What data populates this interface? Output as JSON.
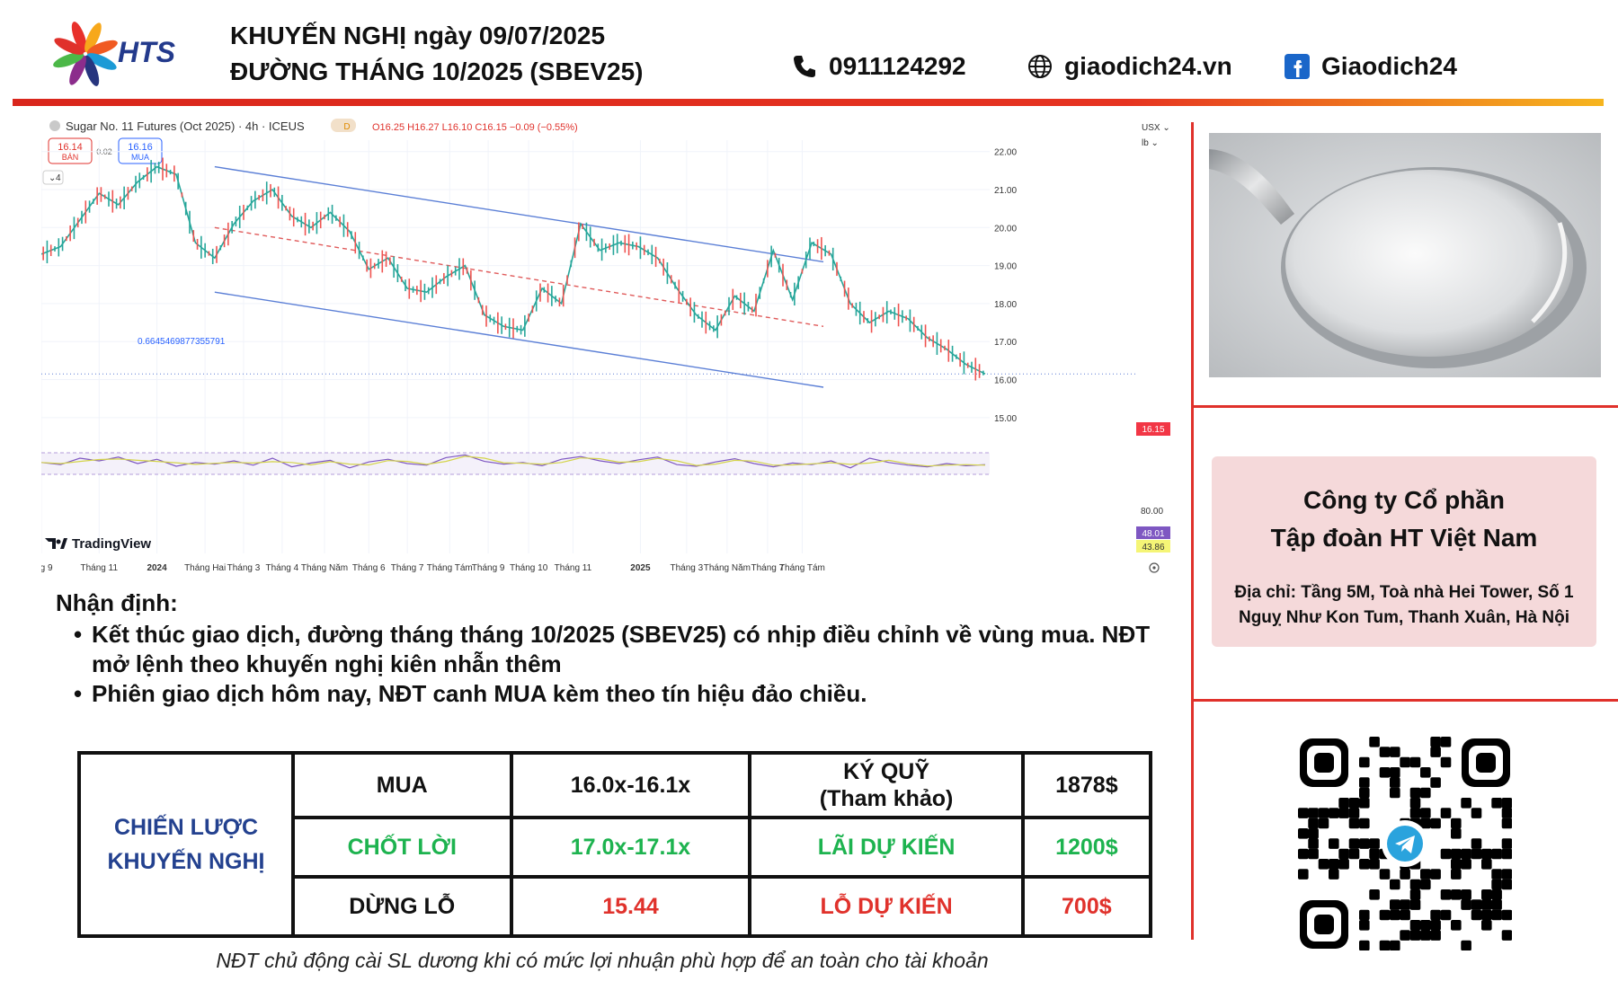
{
  "header": {
    "logo_text": "HTS",
    "title_line1": "KHUYẾN NGHỊ ngày 09/07/2025",
    "title_line2": "ĐƯỜNG THÁNG 10/2025 (SBEV25)",
    "phone": "0911124292",
    "website": "giaodich24.vn",
    "facebook": "Giaodich24",
    "icons": [
      "phone-icon",
      "globe-icon",
      "facebook-icon"
    ]
  },
  "chart_header": {
    "symbol": "Sugar No. 11 Futures (Oct 2025) · 4h · ICEUS",
    "badge": "D",
    "ohlc": "O16.25 H16.27 L16.10 C16.15 −0.09 (−0.55%)",
    "sell_price": "16.14",
    "sell_label": "BÁN",
    "spread": "0.02",
    "buy_price": "16.16",
    "buy_label": "MUA",
    "indicator_count": "4",
    "unit_currency": "USX ⌄",
    "unit_weight": "lb ⌄",
    "brand": "TradingView",
    "fib_label": "0.6645469877355791",
    "last_price_tag": "16.15",
    "rsi_tag1": "48.01",
    "rsi_tag2": "43.86",
    "rsi_level": "80.00"
  },
  "chart_data": {
    "type": "line",
    "title": "Sugar No. 11 Futures (Oct 2025) · 4h · ICEUS",
    "y_ticks": [
      "15.00",
      "16.00",
      "17.00",
      "18.00",
      "19.00",
      "20.00",
      "21.00",
      "22.00"
    ],
    "ylim": [
      14.5,
      22.3
    ],
    "x_ticks": [
      "áng 9",
      "Tháng 11",
      "2024",
      "Tháng Hai",
      "Tháng 3",
      "Tháng 4",
      "Tháng Năm",
      "Tháng 6",
      "Tháng 7",
      "Tháng Tám",
      "Tháng 9",
      "Tháng 10",
      "Tháng 11",
      "2025",
      "Tháng 3",
      "Tháng Năm",
      "Tháng 7",
      "Tháng Tám"
    ],
    "x_tick_index": [
      0,
      3,
      6,
      8.5,
      10.5,
      12.5,
      14.7,
      17,
      19,
      21.2,
      23.2,
      25.3,
      27.6,
      31.1,
      33.5,
      35.6,
      37.7,
      39.5
    ],
    "series": [
      {
        "values": [
          19.3,
          19.5,
          20.2,
          20.9,
          20.6,
          21.2,
          21.6,
          21.4,
          19.6,
          19.2,
          20.1,
          20.7,
          21.0,
          20.3,
          20.0,
          20.4,
          19.9,
          18.9,
          19.2,
          18.4,
          18.3,
          18.7,
          19.0,
          17.7,
          17.4,
          17.3,
          18.4,
          18.0,
          20.1,
          19.4,
          19.6,
          19.5,
          19.2,
          18.4,
          17.7,
          17.3,
          18.2,
          17.8,
          19.4,
          18.1,
          19.6,
          19.3,
          18.0,
          17.5,
          17.8,
          17.6,
          17.1,
          16.8,
          16.4,
          16.15
        ]
      }
    ],
    "channel_upper": [
      [
        9,
        21.6
      ],
      [
        40.6,
        19.1
      ]
    ],
    "channel_middle": [
      [
        9,
        20.0
      ],
      [
        40.6,
        17.4
      ]
    ],
    "channel_lower": [
      [
        9,
        18.3
      ],
      [
        40.6,
        15.8
      ]
    ],
    "last_price": 16.15,
    "rsi": [
      52,
      48,
      60,
      55,
      62,
      50,
      58,
      45,
      52,
      49,
      55,
      47,
      60,
      44,
      51,
      56,
      42,
      53,
      58,
      50,
      47,
      61,
      66,
      54,
      49,
      52,
      46,
      58,
      63,
      55,
      50,
      57,
      62,
      48,
      45,
      53,
      59,
      50,
      44,
      51,
      48,
      55,
      42,
      60,
      52,
      47,
      44,
      50,
      46,
      48
    ]
  },
  "commentary": {
    "title": "Nhận định:",
    "bullets": [
      "Kết thúc giao dịch, đường tháng tháng 10/2025 (SBEV25) có nhịp điều chỉnh về vùng mua. NĐT mở lệnh theo khuyến nghị kiên nhẫn thêm",
      "Phiên giao dịch hôm nay, NĐT canh MUA kèm theo tín hiệu đảo chiều."
    ]
  },
  "strategy": {
    "label_line1": "CHIẾN LƯỢC",
    "label_line2": "KHUYẾN NGHỊ",
    "buy_label": "MUA",
    "buy_value": "16.0x-16.1x",
    "margin_label_line1": "KÝ QUỸ",
    "margin_label_line2": "(Tham khảo)",
    "margin_value": "1878$",
    "tp_label": "CHỐT LỜI",
    "tp_value": "17.0x-17.1x",
    "profit_label": "LÃI DỰ KIẾN",
    "profit_value": "1200$",
    "sl_label": "DỪNG LỖ",
    "sl_value": "15.44",
    "loss_label": "LỖ DỰ KIẾN",
    "loss_value": "700$",
    "colors": {
      "label": "#23418f",
      "green": "#1db34f",
      "red": "#e0322c"
    }
  },
  "footnote": "NĐT chủ động cài SL dương khi có mức lợi nhuận phù hợp để an toàn cho tài khoản",
  "company": {
    "name_line1": "Công ty Cổ phần",
    "name_line2": "Tập đoàn HT Việt Nam",
    "address_line1": "Địa chỉ: Tầng 5M, Toà nhà Hei Tower, Số 1",
    "address_line2": "Nguỵ Như Kon Tum, Thanh Xuân, Hà Nội"
  },
  "images": [
    "sugar-spoon-image",
    "telegram-qr-code"
  ]
}
